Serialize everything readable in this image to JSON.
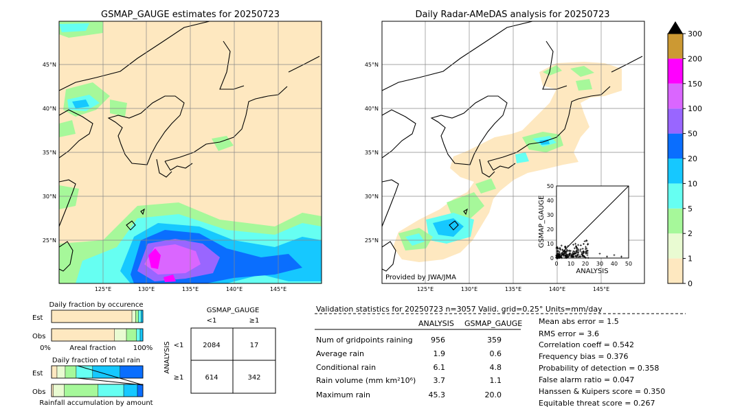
{
  "maps": {
    "left_title": "GSMAP_GAUGE estimates for 20250723",
    "right_title": "Daily Radar-AMeDAS analysis for 20250723",
    "lat_labels": [
      "45°N",
      "40°N",
      "35°N",
      "30°N",
      "25°N"
    ],
    "lon_labels": [
      "125°E",
      "130°E",
      "135°E",
      "140°E",
      "145°E"
    ],
    "provider": "Provided by JWA/JMA"
  },
  "colorbar": {
    "levels": [
      "0",
      "1",
      "2",
      "5",
      "10",
      "20",
      "50",
      "100",
      "150",
      "200",
      "300"
    ],
    "colors": [
      "#fee8c0",
      "#e9fbd2",
      "#a6f89a",
      "#66fff2",
      "#16c8ff",
      "#0a6efe",
      "#9966ff",
      "#da66ff",
      "#ff00ff",
      "#cc9933",
      "#000000"
    ]
  },
  "scatter": {
    "xlabel": "ANALYSIS",
    "ylabel": "GSMAP_GAUGE",
    "ticks": [
      "0",
      "10",
      "20",
      "30",
      "40",
      "50"
    ]
  },
  "occurrence": {
    "title": "Daily fraction by occurence",
    "rows": [
      "Est",
      "Obs"
    ],
    "axis_left": "0%",
    "axis_mid": "Areal fraction",
    "axis_right": "100%"
  },
  "total_rain": {
    "title": "Daily fraction of total rain",
    "rows": [
      "Est",
      "Obs"
    ],
    "axis_label": "Rainfall accumulation by amount"
  },
  "contingency": {
    "col_title": "GSMAP_GAUGE",
    "col_lt": "<1",
    "col_ge": "≥1",
    "row_title": "ANALYSIS",
    "row_lt": "<1",
    "row_ge": "≥1",
    "cells": [
      "2084",
      "17",
      "614",
      "342"
    ]
  },
  "validation": {
    "header": "Validation statistics for 20250723  n=3057 Valid. grid=0.25° Units=mm/day",
    "col_analysis": "ANALYSIS",
    "col_gsmap": "GSMAP_GAUGE",
    "rows": [
      {
        "label": "Num of gridpoints raining",
        "analysis": "956",
        "gsmap": "359"
      },
      {
        "label": "Average rain",
        "analysis": "1.9",
        "gsmap": "0.6"
      },
      {
        "label": "Conditional rain",
        "analysis": "6.1",
        "gsmap": "4.8"
      },
      {
        "label": "Rain volume (mm km²10⁶)",
        "analysis": "3.7",
        "gsmap": "1.1"
      },
      {
        "label": "Maximum rain",
        "analysis": "45.3",
        "gsmap": "20.0"
      }
    ],
    "scores": [
      "Mean abs error =    1.5",
      "RMS error =    3.6",
      "Correlation coeff =  0.542",
      "Frequency bias =  0.376",
      "Probability of detection =  0.358",
      "False alarm ratio =  0.047",
      "Hanssen & Kuipers score =  0.350",
      "Equitable threat score =  0.267"
    ]
  },
  "chart_data": [
    {
      "type": "bar",
      "title": "Daily fraction by occurence",
      "categories": [
        "Est",
        "Obs"
      ],
      "series": [
        {
          "values": [
            0.88,
            0.69
          ]
        },
        {
          "values": [
            0.04,
            0.13
          ]
        },
        {
          "values": [
            0.03,
            0.11
          ]
        },
        {
          "values": [
            0.03,
            0.04
          ]
        },
        {
          "values": [
            0.02,
            0.03
          ]
        }
      ]
    },
    {
      "type": "bar",
      "title": "Daily fraction of total rain",
      "categories": [
        "Est",
        "Obs"
      ],
      "series": [
        {
          "values": [
            0.06,
            0.02
          ]
        },
        {
          "values": [
            0.09,
            0.12
          ]
        },
        {
          "values": [
            0.12,
            0.37
          ]
        },
        {
          "values": [
            0.18,
            0.28
          ]
        },
        {
          "values": [
            0.3,
            0.15
          ]
        },
        {
          "values": [
            0.25,
            0.06
          ]
        }
      ]
    }
  ]
}
